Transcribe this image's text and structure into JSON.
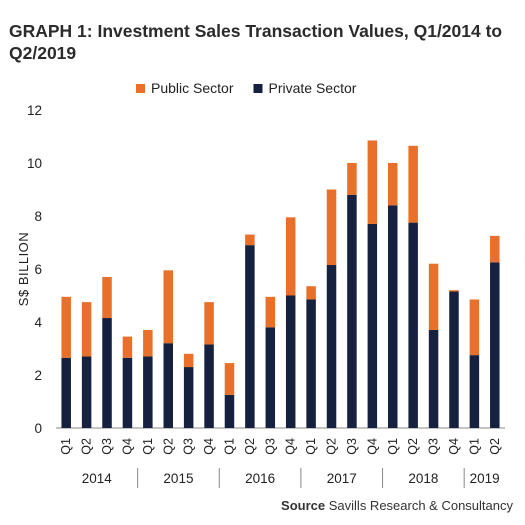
{
  "title": "GRAPH 1: Investment Sales Transaction Values, Q1/2014 to Q2/2019",
  "source": {
    "label": "Source",
    "text": "Savills Research & Consultancy"
  },
  "colors": {
    "public": "#e8702a",
    "private": "#15213f",
    "axis": "#888888",
    "grid": "#d9d9d9"
  },
  "chart_data": {
    "type": "bar",
    "stacked": true,
    "categories": [
      "Q1",
      "Q2",
      "Q3",
      "Q4",
      "Q1",
      "Q2",
      "Q3",
      "Q4",
      "Q1",
      "Q2",
      "Q3",
      "Q4",
      "Q1",
      "Q2",
      "Q3",
      "Q4",
      "Q1",
      "Q2",
      "Q3",
      "Q4",
      "Q1",
      "Q2"
    ],
    "year_groups": [
      {
        "label": "2014",
        "start": 0,
        "end": 3
      },
      {
        "label": "2015",
        "start": 4,
        "end": 7
      },
      {
        "label": "2016",
        "start": 8,
        "end": 11
      },
      {
        "label": "2017",
        "start": 12,
        "end": 15
      },
      {
        "label": "2018",
        "start": 16,
        "end": 19
      },
      {
        "label": "2019",
        "start": 20,
        "end": 21
      }
    ],
    "series": [
      {
        "name": "Private Sector",
        "color": "#15213f",
        "values": [
          2.65,
          2.7,
          4.15,
          2.65,
          2.7,
          3.2,
          2.3,
          3.15,
          1.25,
          6.9,
          3.8,
          5.0,
          4.85,
          6.15,
          8.8,
          7.7,
          8.4,
          7.75,
          3.7,
          5.15,
          2.75,
          6.25
        ]
      },
      {
        "name": "Public Sector",
        "color": "#e8702a",
        "values": [
          2.3,
          2.05,
          1.55,
          0.8,
          1.0,
          2.75,
          0.5,
          1.6,
          1.2,
          0.4,
          1.15,
          2.95,
          0.5,
          2.85,
          1.2,
          3.15,
          1.6,
          2.9,
          2.5,
          0.05,
          2.1,
          1.0
        ]
      }
    ],
    "legend_order": [
      "Public Sector",
      "Private Sector"
    ],
    "legend_position": "top",
    "ylabel": "S$ BILLION",
    "xlabel": "",
    "ylim": [
      0,
      12
    ],
    "yticks": [
      0,
      2,
      4,
      6,
      8,
      10,
      12
    ],
    "grid": false
  }
}
